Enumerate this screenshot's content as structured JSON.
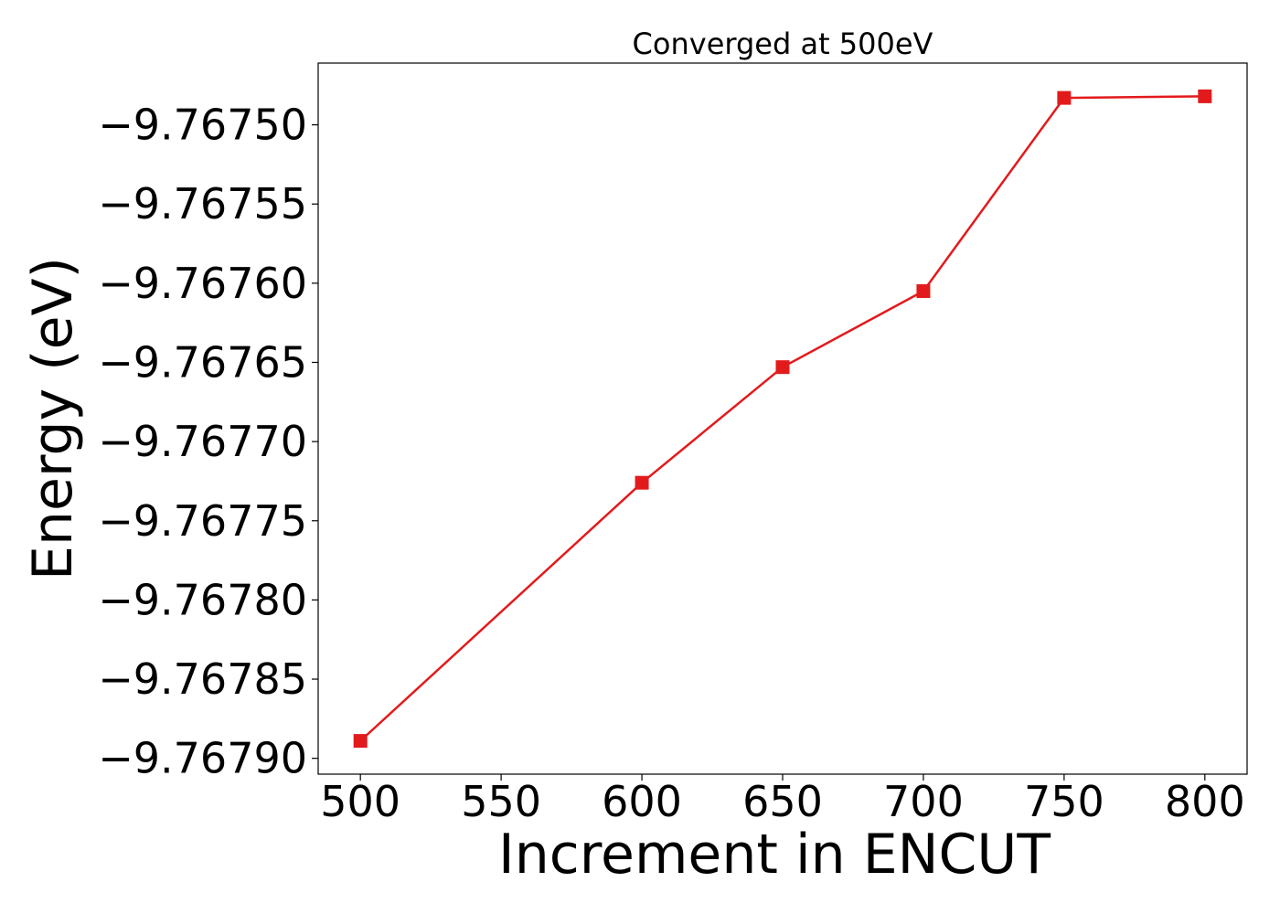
{
  "chart_data": {
    "type": "line",
    "title": "Converged at 500eV",
    "xlabel": "Increment in ENCUT",
    "ylabel": "Energy (eV)",
    "x": [
      500,
      600,
      650,
      700,
      750,
      800
    ],
    "series": [
      {
        "values": [
          -9.767889,
          -9.767726,
          -9.767653,
          -9.767605,
          -9.767483,
          -9.767482
        ],
        "color": "#e31a1c",
        "marker": "square"
      }
    ],
    "xlim": [
      485,
      815
    ],
    "ylim": [
      -9.76791,
      -9.767461
    ],
    "xticks": [
      500,
      550,
      600,
      650,
      700,
      750,
      800
    ],
    "xtick_labels": [
      "500",
      "550",
      "600",
      "650",
      "700",
      "750",
      "800"
    ],
    "yticks": [
      -9.7679,
      -9.76785,
      -9.7678,
      -9.76775,
      -9.7677,
      -9.76765,
      -9.7676,
      -9.76755,
      -9.7675
    ],
    "ytick_labels": [
      "−9.76790",
      "−9.76785",
      "−9.76780",
      "−9.76775",
      "−9.76770",
      "−9.76765",
      "−9.76760",
      "−9.76755",
      "−9.76750"
    ],
    "grid": false,
    "legend": "none"
  }
}
